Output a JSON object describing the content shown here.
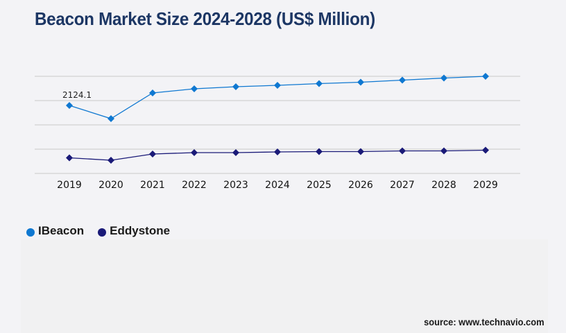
{
  "chart_data": {
    "type": "line",
    "title": "Beacon Market Size 2024-2028 (US$ Million)",
    "xlabel": "",
    "ylabel": "",
    "categories": [
      "2019",
      "2020",
      "2021",
      "2022",
      "2023",
      "2024",
      "2025",
      "2026",
      "2027",
      "2028",
      "2029"
    ],
    "series": [
      {
        "name": "IBeacon",
        "color": "#0f78d1",
        "values": [
          2124.1,
          1712.3,
          2514.2,
          2644.3,
          2709.3,
          2752.6,
          2806.8,
          2850.1,
          2915.2,
          2980.2,
          3034.4
        ]
      },
      {
        "name": "Eddystone",
        "color": "#1a1a78",
        "values": [
          487.7,
          411.8,
          606.9,
          650.2,
          650.2,
          671.9,
          682.7,
          682.7,
          704.4,
          704.4,
          726.1
        ]
      }
    ],
    "data_labels": [
      {
        "series": "IBeacon",
        "category": "2019",
        "text": "2124.1"
      }
    ],
    "ylim": [
      0,
      3034.4
    ],
    "y_gridlines": 5,
    "y_tick_labels_visible": false,
    "grid": true,
    "legend": "bottom-left",
    "source": "source: www.technavio.com"
  },
  "gridline_color": "#c8c8c8",
  "background_color": "#f3f3f6"
}
